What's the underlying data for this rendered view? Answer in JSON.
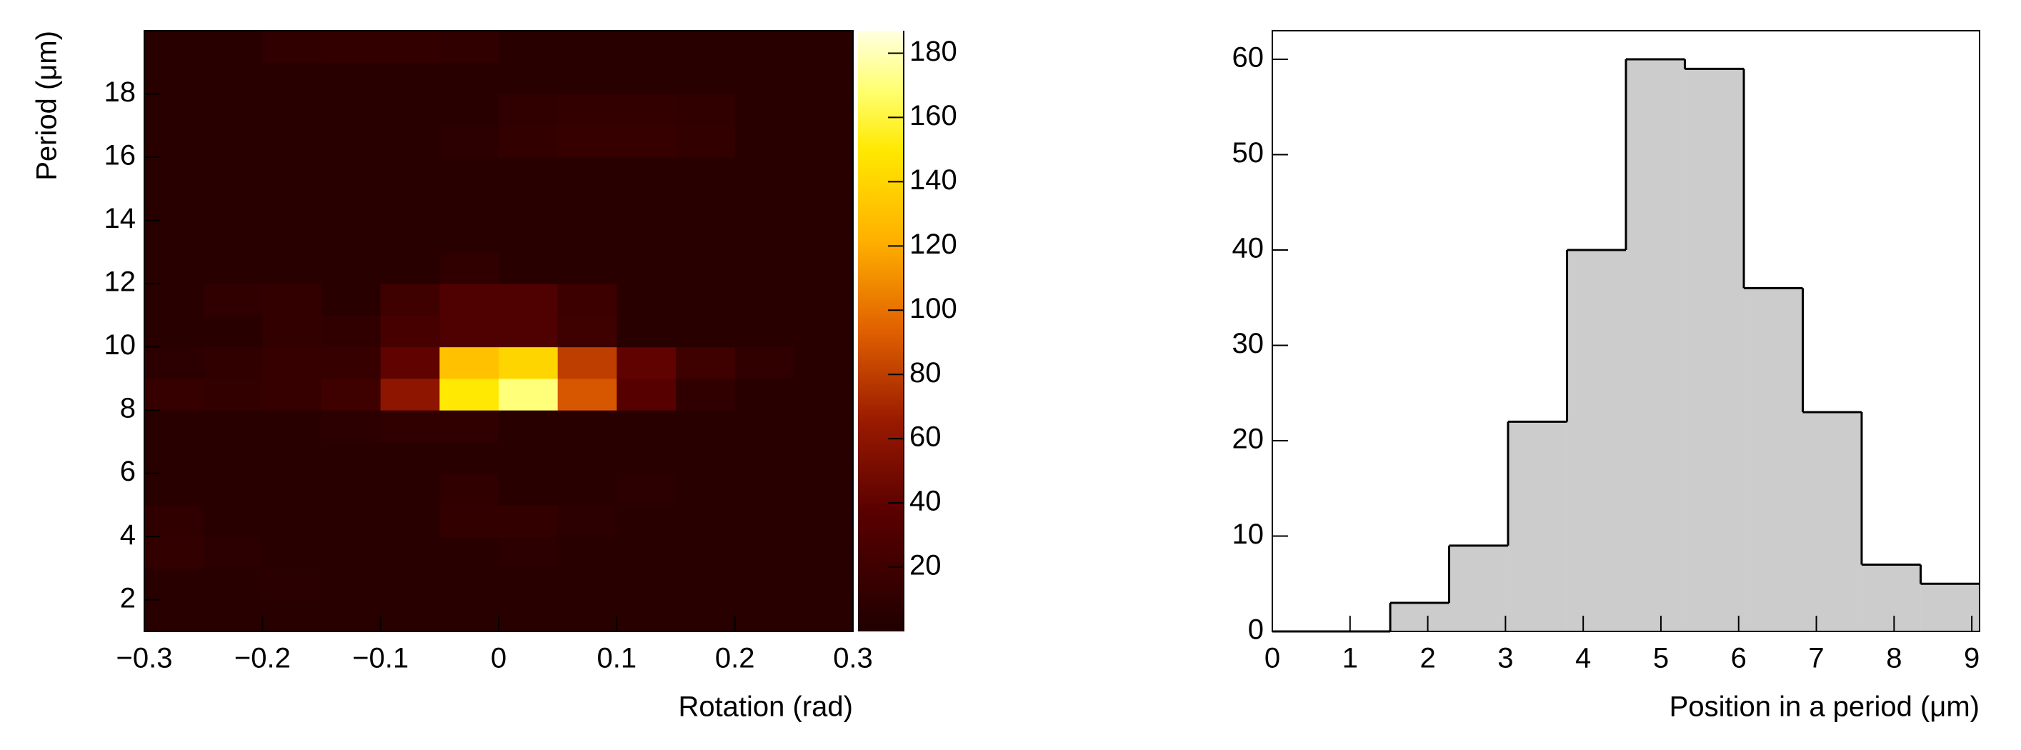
{
  "chart_data": [
    {
      "type": "heatmap",
      "x_label": "Rotation (rad)",
      "y_label": "Period (μm)",
      "xbins": [
        -0.3,
        -0.25,
        -0.2,
        -0.15,
        -0.1,
        -0.05,
        0,
        0.05,
        0.1,
        0.15,
        0.2,
        0.25,
        0.3
      ],
      "ybins": [
        1,
        2,
        3,
        4,
        5,
        6,
        7,
        8,
        9,
        10,
        11,
        12,
        13,
        14,
        15,
        16,
        17,
        18,
        19,
        20
      ],
      "z": [
        [
          5,
          5,
          5,
          5,
          5,
          5,
          5,
          5,
          5,
          5,
          5,
          5
        ],
        [
          5,
          5,
          7,
          5,
          5,
          5,
          5,
          5,
          5,
          5,
          5,
          5
        ],
        [
          12,
          8,
          5,
          5,
          5,
          6,
          8,
          5,
          5,
          5,
          5,
          5
        ],
        [
          10,
          5,
          5,
          5,
          5,
          12,
          12,
          8,
          5,
          5,
          5,
          5
        ],
        [
          5,
          5,
          5,
          5,
          5,
          10,
          5,
          5,
          8,
          5,
          5,
          5
        ],
        [
          5,
          5,
          5,
          5,
          5,
          5,
          5,
          5,
          5,
          5,
          5,
          5
        ],
        [
          5,
          5,
          5,
          8,
          10,
          10,
          5,
          5,
          5,
          5,
          5,
          5
        ],
        [
          15,
          12,
          15,
          20,
          60,
          150,
          170,
          90,
          35,
          10,
          5,
          5
        ],
        [
          8,
          10,
          15,
          15,
          40,
          130,
          140,
          80,
          40,
          20,
          10,
          5
        ],
        [
          5,
          5,
          12,
          10,
          25,
          30,
          30,
          20,
          5,
          5,
          5,
          5
        ],
        [
          5,
          10,
          12,
          5,
          20,
          30,
          30,
          18,
          5,
          5,
          5,
          5
        ],
        [
          5,
          5,
          5,
          5,
          5,
          10,
          5,
          5,
          5,
          5,
          5,
          5
        ],
        [
          5,
          5,
          5,
          5,
          5,
          5,
          5,
          5,
          5,
          5,
          5,
          5
        ],
        [
          5,
          5,
          5,
          5,
          5,
          5,
          5,
          5,
          5,
          5,
          5,
          5
        ],
        [
          5,
          5,
          5,
          5,
          5,
          5,
          5,
          5,
          5,
          5,
          5,
          5
        ],
        [
          5,
          5,
          5,
          5,
          5,
          8,
          12,
          14,
          14,
          12,
          5,
          5
        ],
        [
          5,
          5,
          5,
          5,
          5,
          5,
          10,
          12,
          12,
          10,
          5,
          5
        ],
        [
          5,
          5,
          5,
          5,
          5,
          5,
          5,
          5,
          5,
          5,
          5,
          5
        ],
        [
          5,
          5,
          10,
          12,
          12,
          10,
          5,
          5,
          5,
          5,
          5,
          5
        ]
      ],
      "xlim": [
        -0.3,
        0.3
      ],
      "ylim": [
        1,
        20
      ],
      "zlim": [
        0,
        187
      ],
      "xticks": [
        {
          "value": -0.3,
          "label": "−0.3"
        },
        {
          "value": -0.2,
          "label": "−0.2"
        },
        {
          "value": -0.1,
          "label": "−0.1"
        },
        0,
        0.1,
        0.2,
        0.3
      ],
      "yticks": [
        2,
        4,
        6,
        8,
        10,
        12,
        14,
        16,
        18
      ],
      "zticks": [
        20,
        40,
        60,
        80,
        100,
        120,
        140,
        160,
        180
      ]
    },
    {
      "type": "histogram",
      "x_label": "Position in a period (μm)",
      "bins": [
        0,
        0.758,
        1.517,
        2.275,
        3.033,
        3.792,
        4.55,
        5.308,
        6.067,
        6.825,
        7.583,
        8.342,
        9.1
      ],
      "values": [
        0,
        0,
        3,
        9,
        22,
        40,
        60,
        59,
        36,
        23,
        7,
        5
      ],
      "color": "#cccccc",
      "line_color": "#000000",
      "xlim": [
        0,
        9.1
      ],
      "ylim": [
        0,
        63
      ],
      "xticks": [
        0,
        1,
        2,
        3,
        4,
        5,
        6,
        7,
        8,
        9
      ],
      "yticks": [
        0,
        10,
        20,
        30,
        40,
        50,
        60
      ]
    }
  ]
}
